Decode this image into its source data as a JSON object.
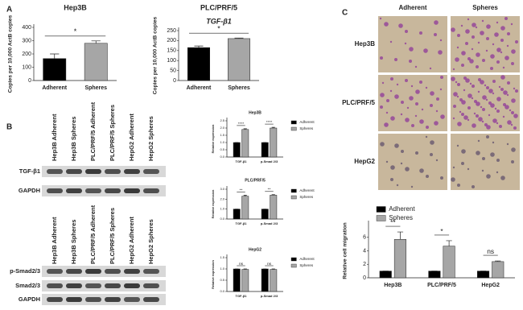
{
  "panel_labels": [
    "A",
    "B",
    "C"
  ],
  "chart_data": [
    {
      "type": "bar",
      "title": "Hep3B",
      "ylabel": "Copies per 10,000 ActB copies",
      "categories": [
        "Adherent",
        "Spheres"
      ],
      "values": [
        165,
        280
      ],
      "errors": [
        35,
        18
      ],
      "colors": [
        "#000000",
        "#a6a6a6"
      ],
      "ylim": [
        0,
        400
      ],
      "yticks": [
        0,
        100,
        200,
        300,
        400
      ],
      "annotation": "*"
    },
    {
      "type": "bar",
      "title": "PLC/PRF/5",
      "subtitle": "TGF-β1",
      "ylabel": "Copies per 10,000 ActB copies",
      "categories": [
        "Adherent",
        "Spheres"
      ],
      "values": [
        165,
        210
      ],
      "errors": [
        8,
        3
      ],
      "colors": [
        "#000000",
        "#a6a6a6"
      ],
      "ylim": [
        0,
        250
      ],
      "yticks": [
        0,
        50,
        100,
        150,
        200,
        250
      ],
      "annotation": "*"
    },
    {
      "type": "bar",
      "title": "Hep3B",
      "ylabel": "Relative expression",
      "categories": [
        "TGF-β1",
        "p-Smad 2/3"
      ],
      "series": [
        {
          "name": "Adherent",
          "color": "#000000",
          "values": [
            1,
            1
          ],
          "errors": [
            0,
            0
          ]
        },
        {
          "name": "Spheres",
          "color": "#a6a6a6",
          "values": [
            1.9,
            2.0
          ],
          "errors": [
            0.05,
            0.05
          ]
        }
      ],
      "ylim": [
        0,
        2.5
      ],
      "yticks": [
        {
          "value": 0,
          "label": "0.0"
        },
        {
          "value": 0.5,
          "label": "0.5"
        },
        {
          "value": 1,
          "label": "1.0"
        },
        {
          "value": 1.5,
          "label": "1.5"
        },
        {
          "value": 2,
          "label": "2.0"
        },
        {
          "value": 2.5,
          "label": "2.5"
        }
      ],
      "annotations": [
        "****",
        "****"
      ],
      "legend": "right"
    },
    {
      "type": "bar",
      "title": "PLC/PRF/5",
      "ylabel": "Relative expression",
      "categories": [
        "TGF-β1",
        "p-Smad 2/3"
      ],
      "series": [
        {
          "name": "Adherent",
          "color": "#000000",
          "values": [
            1,
            1
          ],
          "errors": [
            0,
            0
          ]
        },
        {
          "name": "Spheres",
          "color": "#a6a6a6",
          "values": [
            2.3,
            2.4
          ],
          "errors": [
            0.1,
            0.05
          ]
        }
      ],
      "ylim": [
        0,
        3
      ],
      "yticks": [
        {
          "value": 0,
          "label": "0.0"
        },
        {
          "value": 1,
          "label": "1.0"
        },
        {
          "value": 2,
          "label": "2.0"
        },
        {
          "value": 3,
          "label": "3.0"
        }
      ],
      "annotations": [
        "**",
        "**"
      ],
      "legend": "right"
    },
    {
      "type": "bar",
      "title": "HepG2",
      "ylabel": "Relative expression",
      "categories": [
        "TGF-β1",
        "p-Smad 2/3"
      ],
      "series": [
        {
          "name": "Adherent",
          "color": "#000000",
          "values": [
            1,
            1
          ],
          "errors": [
            0,
            0
          ]
        },
        {
          "name": "Spheres",
          "color": "#a6a6a6",
          "values": [
            0.98,
            0.98
          ],
          "errors": [
            0.02,
            0.02
          ]
        }
      ],
      "ylim": [
        0,
        1.5
      ],
      "yticks": [
        {
          "value": 0,
          "label": "0.0"
        },
        {
          "value": 0.5,
          "label": "0.5"
        },
        {
          "value": 1,
          "label": "1.0"
        },
        {
          "value": 1.5,
          "label": "1.5"
        }
      ],
      "annotations": [
        "ns",
        "ns"
      ],
      "legend": "right"
    },
    {
      "type": "bar",
      "ylabel": "Relative cell migration",
      "categories": [
        "Hep3B",
        "PLC/PRF/5",
        "HepG2"
      ],
      "series": [
        {
          "name": "Adherent",
          "color": "#000000",
          "values": [
            1,
            1,
            1
          ],
          "errors": [
            0,
            0,
            0
          ]
        },
        {
          "name": "Spheres",
          "color": "#a6a6a6",
          "values": [
            5.7,
            4.7,
            2.4
          ],
          "errors": [
            1.1,
            0.8,
            0.1
          ]
        }
      ],
      "ylim": [
        0,
        8
      ],
      "yticks": [
        0,
        2,
        4,
        6
      ],
      "annotations": [
        "**",
        "*",
        "ns"
      ],
      "legend": "top"
    }
  ],
  "blot_top": {
    "lanes": [
      "Hep3B Adherent",
      "Hep3B Spheres",
      "PLC/PRF/5 Adherent",
      "PLC/PRF/5 Spheres",
      "HepG2 Adherent",
      "HepG2 Spheres"
    ],
    "rows": [
      "TGF-β1",
      "GAPDH"
    ]
  },
  "blot_bottom": {
    "lanes": [
      "Hep3B Adherent",
      "Hep3B Spheres",
      "PLC/PRF/5 Adherent",
      "PLC/PRF/5 Spheres",
      "HepG2 Adherent",
      "HepG2 Spheres"
    ],
    "rows": [
      "p-Smad2/3",
      "Smad2/3",
      "GAPDH"
    ]
  },
  "micrographs": {
    "columns": [
      "Adherent",
      "Spheres"
    ],
    "rows": [
      "Hep3B",
      "PLC/PRF/5",
      "HepG2"
    ]
  }
}
